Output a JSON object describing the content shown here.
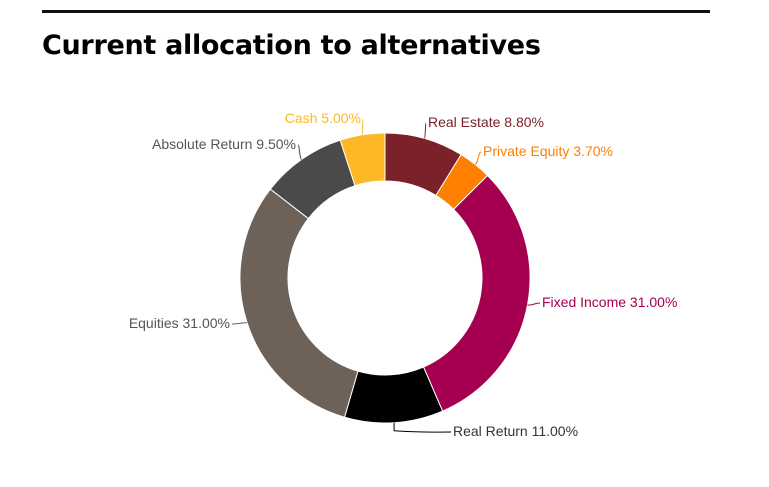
{
  "page": {
    "title": "Current allocation to alternatives"
  },
  "chart_data": {
    "type": "pie",
    "style": "donut",
    "title": "Current allocation to alternatives",
    "legend": "none",
    "unit": "%",
    "slices": [
      {
        "name": "Real Estate",
        "value": 8.8,
        "label": "Real Estate 8.80%",
        "color": "#7b2129"
      },
      {
        "name": "Private Equity",
        "value": 3.7,
        "label": "Private Equity 3.70%",
        "color": "#ff7f00"
      },
      {
        "name": "Fixed Income",
        "value": 31.0,
        "label": "Fixed Income 31.00%",
        "color": "#a5004f"
      },
      {
        "name": "Real Return",
        "value": 11.0,
        "label": "Real Return 11.00%",
        "color": "#000000"
      },
      {
        "name": "Equities",
        "value": 31.0,
        "label": "Equities 31.00%",
        "color": "#6d6158"
      },
      {
        "name": "Absolute Return",
        "value": 9.5,
        "label": "Absolute Return 9.50%",
        "color": "#4a4a4a"
      },
      {
        "name": "Cash",
        "value": 5.0,
        "label": "Cash 5.00%",
        "color": "#fdb827"
      }
    ]
  }
}
